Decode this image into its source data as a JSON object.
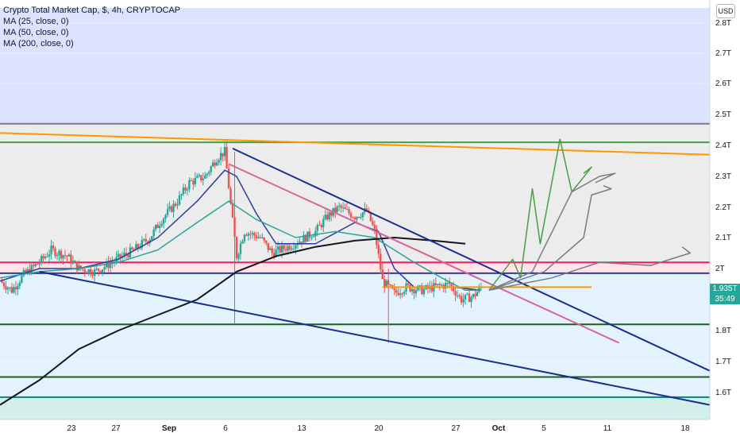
{
  "legend": {
    "title": "Crypto Total Market Cap, $, 4h, CRYPTOCAP",
    "ma1": "MA (25, close, 0)",
    "ma2": "MA (50, close, 0)",
    "ma3": "MA (200, close, 0)"
  },
  "currency_button": "USD",
  "last_price": {
    "value": "1.935T",
    "countdown": "35:49",
    "color": "#26a69a"
  },
  "chart_data": {
    "type": "candlestick",
    "title": "Crypto Total Market Cap, $, 4h, CRYPTOCAP",
    "y_axis": {
      "unit": "T",
      "ticks": [
        "2.8T",
        "2.7T",
        "2.6T",
        "2.5T",
        "2.4T",
        "2.3T",
        "2.2T",
        "2.1T",
        "2T",
        "1.8T",
        "1.7T",
        "1.6T"
      ],
      "range": [
        1.55,
        2.85
      ]
    },
    "x_axis": {
      "ticks": [
        "23",
        "27",
        "Sep",
        "6",
        "13",
        "20",
        "27",
        "Oct",
        "5",
        "11",
        "18"
      ]
    },
    "price_path": [
      [
        0,
        1.96
      ],
      [
        3,
        1.93
      ],
      [
        6,
        1.98
      ],
      [
        10,
        2.02
      ],
      [
        13,
        2.06
      ],
      [
        17,
        2.04
      ],
      [
        20,
        2.0
      ],
      [
        24,
        1.99
      ],
      [
        27,
        2.01
      ],
      [
        31,
        2.04
      ],
      [
        34,
        2.06
      ],
      [
        38,
        2.1
      ],
      [
        41,
        2.16
      ],
      [
        45,
        2.22
      ],
      [
        48,
        2.28
      ],
      [
        52,
        2.3
      ],
      [
        55,
        2.36
      ],
      [
        57,
        2.38
      ],
      [
        60,
        2.04
      ],
      [
        62,
        2.12
      ],
      [
        66,
        2.1
      ],
      [
        69,
        2.05
      ],
      [
        73,
        2.07
      ],
      [
        76,
        2.09
      ],
      [
        80,
        2.12
      ],
      [
        83,
        2.17
      ],
      [
        86,
        2.2
      ],
      [
        90,
        2.17
      ],
      [
        93,
        2.19
      ],
      [
        95,
        2.12
      ],
      [
        97,
        1.96
      ],
      [
        100,
        1.92
      ],
      [
        103,
        1.94
      ],
      [
        107,
        1.93
      ],
      [
        110,
        1.94
      ],
      [
        114,
        1.95
      ],
      [
        117,
        1.9
      ],
      [
        120,
        1.91
      ],
      [
        122,
        1.94
      ]
    ],
    "moving_averages": [
      {
        "name": "MA (25, close, 0)",
        "color": "#2a3f9e",
        "points": [
          [
            0,
            1.96
          ],
          [
            10,
            2.0
          ],
          [
            20,
            2.0
          ],
          [
            30,
            2.03
          ],
          [
            40,
            2.1
          ],
          [
            50,
            2.22
          ],
          [
            57,
            2.32
          ],
          [
            60,
            2.3
          ],
          [
            65,
            2.18
          ],
          [
            70,
            2.08
          ],
          [
            80,
            2.08
          ],
          [
            90,
            2.15
          ],
          [
            96,
            2.12
          ],
          [
            100,
            2.0
          ],
          [
            105,
            1.94
          ],
          [
            115,
            1.94
          ],
          [
            122,
            1.93
          ]
        ]
      },
      {
        "name": "MA (50, close, 0)",
        "color": "#26a69a",
        "points": [
          [
            0,
            1.97
          ],
          [
            10,
            1.99
          ],
          [
            20,
            2.0
          ],
          [
            30,
            2.02
          ],
          [
            40,
            2.06
          ],
          [
            50,
            2.15
          ],
          [
            58,
            2.22
          ],
          [
            65,
            2.16
          ],
          [
            75,
            2.1
          ],
          [
            85,
            2.12
          ],
          [
            95,
            2.1
          ],
          [
            105,
            2.02
          ],
          [
            112,
            1.97
          ],
          [
            118,
            1.93
          ],
          [
            122,
            1.93
          ]
        ]
      },
      {
        "name": "MA (200, close, 0)",
        "color": "#131722",
        "points": [
          [
            0,
            1.56
          ],
          [
            10,
            1.64
          ],
          [
            20,
            1.74
          ],
          [
            30,
            1.8
          ],
          [
            40,
            1.85
          ],
          [
            50,
            1.9
          ],
          [
            60,
            1.99
          ],
          [
            70,
            2.04
          ],
          [
            80,
            2.07
          ],
          [
            90,
            2.09
          ],
          [
            100,
            2.1
          ],
          [
            110,
            2.09
          ],
          [
            118,
            2.08
          ]
        ]
      }
    ],
    "horizontal_levels": [
      {
        "value": 2.47,
        "color": "#787b86"
      },
      {
        "value": 2.41,
        "color": "#43a047"
      },
      {
        "value": 2.02,
        "color": "#e91e63"
      },
      {
        "value": 1.985,
        "color": "#2a3f9e"
      },
      {
        "value": 1.82,
        "color": "#1b5e20"
      },
      {
        "value": 1.65,
        "color": "#1b5e20"
      },
      {
        "value": 1.585,
        "color": "#00897b"
      }
    ],
    "trend_lines": [
      {
        "color": "#ff9800",
        "from": [
          0,
          2.44
        ],
        "to": [
          180,
          2.37
        ]
      },
      {
        "color": "#1a2c8f",
        "from": [
          59,
          2.39
        ],
        "to": [
          180,
          1.67
        ]
      },
      {
        "color": "#1a2c8f",
        "from": [
          10,
          1.99
        ],
        "to": [
          180,
          1.56
        ]
      },
      {
        "color": "#d9639a",
        "from": [
          58,
          2.34
        ],
        "to": [
          157,
          1.76
        ]
      },
      {
        "color": "#ff9800",
        "from": [
          97,
          1.94
        ],
        "to": [
          150,
          1.94
        ]
      }
    ],
    "projections": [
      {
        "color": "#43a047",
        "points": [
          [
            124,
            1.93
          ],
          [
            130,
            2.03
          ],
          [
            132,
            1.97
          ],
          [
            135,
            2.26
          ],
          [
            137,
            2.08
          ],
          [
            142,
            2.42
          ],
          [
            145,
            2.25
          ],
          [
            150,
            2.33
          ],
          [
            148,
            2.31
          ]
        ]
      },
      {
        "color": "#787b86",
        "points": [
          [
            124,
            1.93
          ],
          [
            135,
            1.99
          ],
          [
            145,
            2.25
          ],
          [
            152,
            2.3
          ],
          [
            156,
            2.31
          ],
          [
            151,
            2.28
          ]
        ]
      },
      {
        "color": "#787b86",
        "points": [
          [
            124,
            1.93
          ],
          [
            138,
            1.99
          ],
          [
            148,
            2.1
          ],
          [
            150,
            2.24
          ],
          [
            155,
            2.26
          ],
          [
            153,
            2.27
          ]
        ]
      },
      {
        "color": "#787b86",
        "points": [
          [
            124,
            1.93
          ],
          [
            140,
            1.97
          ],
          [
            152,
            2.02
          ],
          [
            165,
            2.01
          ],
          [
            175,
            2.05
          ],
          [
            173,
            2.07
          ]
        ]
      }
    ],
    "zones": [
      {
        "from": 2.85,
        "to": 2.47,
        "color": "#dbe3ff"
      },
      {
        "from": 2.47,
        "to": 2.02,
        "color": "#ececec"
      },
      {
        "from": 2.02,
        "to": 1.985,
        "color": "#fde3e8"
      },
      {
        "from": 1.985,
        "to": 1.55,
        "color": "#e3f2fd"
      }
    ]
  }
}
